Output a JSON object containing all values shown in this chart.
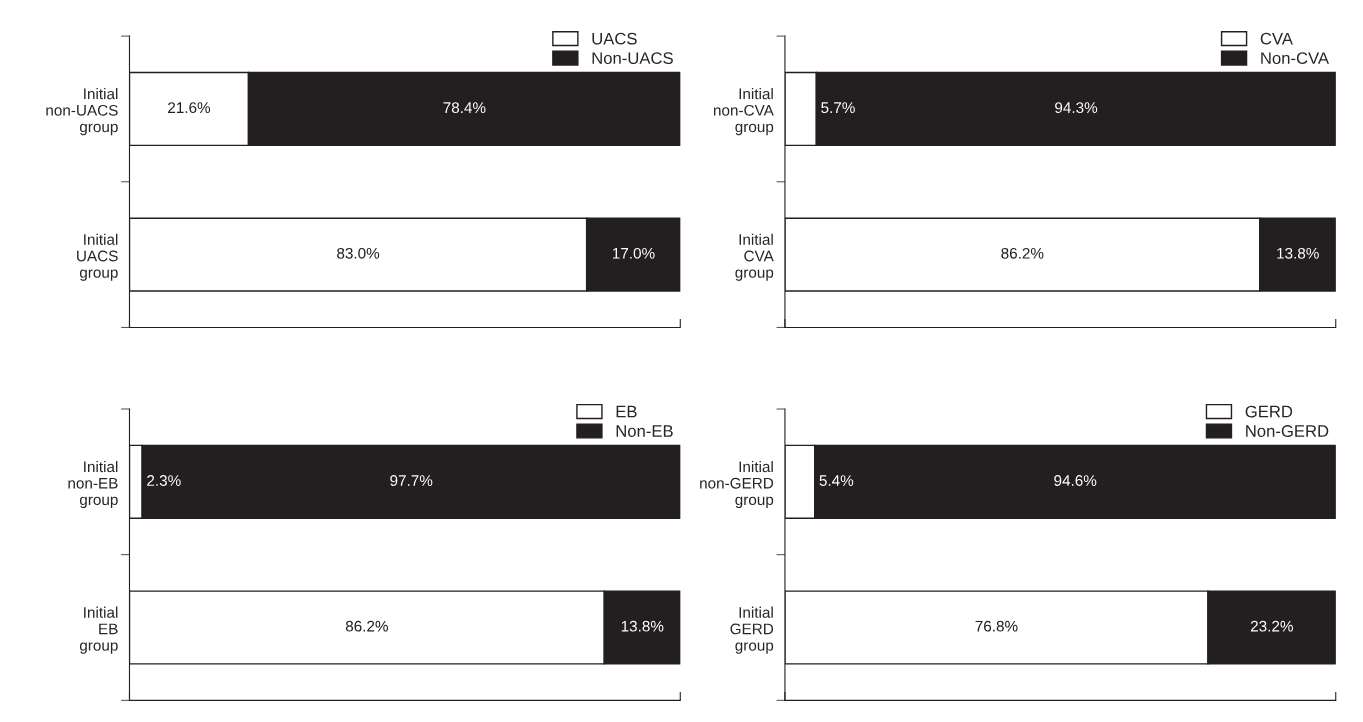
{
  "chart_data": [
    {
      "type": "bar",
      "orientation": "horizontal",
      "stacked": true,
      "legend": "top right",
      "tick_labels": "y",
      "grid": false,
      "categories": [
        "Initial\nnon-UACS\ngroup",
        "Initial\nUACS\ngroup"
      ],
      "series": [
        {
          "name": "UACS",
          "color": "#ffffff",
          "values": [
            21.6,
            83.0
          ],
          "value_labels": [
            "21.6%",
            "83.0%"
          ]
        },
        {
          "name": "Non-UACS",
          "color": "#231f20",
          "values": [
            78.4,
            17.0
          ],
          "value_labels": [
            "78.4%",
            "17.0%"
          ]
        }
      ]
    },
    {
      "type": "bar",
      "orientation": "horizontal",
      "stacked": true,
      "legend": "top right",
      "tick_labels": "y",
      "grid": false,
      "categories": [
        "Initial\nnon-CVA\ngroup",
        "Initial\nCVA\ngroup"
      ],
      "series": [
        {
          "name": "CVA",
          "color": "#ffffff",
          "values": [
            5.7,
            86.2
          ],
          "value_labels": [
            "5.7%",
            "86.2%"
          ]
        },
        {
          "name": "Non-CVA",
          "color": "#231f20",
          "values": [
            94.3,
            13.8
          ],
          "value_labels": [
            "94.3%",
            "13.8%"
          ]
        }
      ]
    },
    {
      "type": "bar",
      "orientation": "horizontal",
      "stacked": true,
      "legend": "top right",
      "tick_labels": "y",
      "grid": false,
      "categories": [
        "Initial\nnon-EB\ngroup",
        "Initial\nEB\ngroup"
      ],
      "series": [
        {
          "name": "EB",
          "color": "#ffffff",
          "values": [
            2.3,
            86.2
          ],
          "value_labels": [
            "2.3%",
            "86.2%"
          ]
        },
        {
          "name": "Non-EB",
          "color": "#231f20",
          "values": [
            97.7,
            13.8
          ],
          "value_labels": [
            "97.7%",
            "13.8%"
          ]
        }
      ]
    },
    {
      "type": "bar",
      "orientation": "horizontal",
      "stacked": true,
      "legend": "top right",
      "tick_labels": "y",
      "grid": false,
      "categories": [
        "Initial\nnon-GERD\ngroup",
        "Initial\nGERD\ngroup"
      ],
      "series": [
        {
          "name": "GERD",
          "color": "#ffffff",
          "values": [
            5.4,
            76.8
          ],
          "value_labels": [
            "5.4%",
            "76.8%"
          ]
        },
        {
          "name": "Non-GERD",
          "color": "#231f20",
          "values": [
            94.6,
            23.2
          ],
          "value_labels": [
            "94.6%",
            "23.2%"
          ]
        }
      ]
    }
  ]
}
